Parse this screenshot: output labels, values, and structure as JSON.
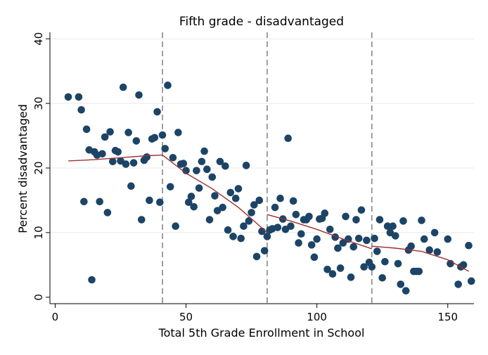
{
  "chart_data": {
    "type": "scatter",
    "title": "Fifth grade - disadvantaged",
    "xlabel": "Total 5th Grade Enrollment in School",
    "ylabel": "Percent disadvantaged",
    "xlim": [
      -2,
      160
    ],
    "ylim": [
      -1,
      41
    ],
    "xticks": [
      0,
      50,
      100,
      150
    ],
    "yticks": [
      0,
      10,
      20,
      30,
      40
    ],
    "grid": true,
    "cutoffs": [
      41,
      81,
      121
    ],
    "points": [
      [
        5,
        31
      ],
      [
        9,
        31
      ],
      [
        10,
        29
      ],
      [
        11,
        14.8
      ],
      [
        12,
        26
      ],
      [
        13,
        22.8
      ],
      [
        14,
        2.7
      ],
      [
        15,
        22.5
      ],
      [
        16,
        22
      ],
      [
        17,
        14.8
      ],
      [
        18,
        22.2
      ],
      [
        19,
        24.8
      ],
      [
        20,
        13.1
      ],
      [
        21,
        25.6
      ],
      [
        22,
        21
      ],
      [
        23,
        22.7
      ],
      [
        24,
        22.5
      ],
      [
        25,
        21.1
      ],
      [
        26,
        32.5
      ],
      [
        27,
        20.6
      ],
      [
        28,
        25.5
      ],
      [
        29,
        17.2
      ],
      [
        30,
        20.8
      ],
      [
        31,
        24.2
      ],
      [
        32,
        31.3
      ],
      [
        33,
        12
      ],
      [
        34,
        21.2
      ],
      [
        35,
        21.7
      ],
      [
        36,
        15
      ],
      [
        37,
        24.5
      ],
      [
        38,
        24.7
      ],
      [
        39,
        28.7
      ],
      [
        40,
        14.7
      ],
      [
        41,
        25.1
      ],
      [
        42,
        23
      ],
      [
        43,
        32.8
      ],
      [
        44,
        17.1
      ],
      [
        45,
        21.6
      ],
      [
        46,
        11
      ],
      [
        47,
        25.5
      ],
      [
        48,
        20.6
      ],
      [
        49,
        20.7
      ],
      [
        50,
        19.6
      ],
      [
        51,
        14.7
      ],
      [
        52,
        15.6
      ],
      [
        53,
        14
      ],
      [
        54,
        19.6
      ],
      [
        55,
        16.9
      ],
      [
        56,
        21
      ],
      [
        57,
        22.6
      ],
      [
        58,
        19.8
      ],
      [
        59,
        12
      ],
      [
        60,
        18.6
      ],
      [
        61,
        15.7
      ],
      [
        62,
        13.4
      ],
      [
        63,
        21
      ],
      [
        64,
        13.9
      ],
      [
        65,
        20.3
      ],
      [
        66,
        10.4
      ],
      [
        67,
        16.2
      ],
      [
        68,
        9.4
      ],
      [
        69,
        15.3
      ],
      [
        70,
        16.8
      ],
      [
        71,
        9.1
      ],
      [
        72,
        11
      ],
      [
        73,
        20.4
      ],
      [
        74,
        11.8
      ],
      [
        75,
        13.1
      ],
      [
        76,
        14.3
      ],
      [
        77,
        6.3
      ],
      [
        78,
        15
      ],
      [
        79,
        10.2
      ],
      [
        80,
        7.2
      ],
      [
        81,
        9.4
      ],
      [
        82,
        10.4
      ],
      [
        83,
        10.6
      ],
      [
        84,
        13.9
      ],
      [
        85,
        10.8
      ],
      [
        86,
        15.3
      ],
      [
        87,
        12.1
      ],
      [
        88,
        10.5
      ],
      [
        89,
        24.6
      ],
      [
        90,
        11
      ],
      [
        91,
        14.9
      ],
      [
        92,
        12.8
      ],
      [
        93,
        8.4
      ],
      [
        94,
        9.8
      ],
      [
        95,
        12
      ],
      [
        96,
        12
      ],
      [
        97,
        12.5
      ],
      [
        98,
        8.1
      ],
      [
        99,
        6.2
      ],
      [
        100,
        9
      ],
      [
        101,
        12.1
      ],
      [
        102,
        12.2
      ],
      [
        103,
        13
      ],
      [
        104,
        4.3
      ],
      [
        105,
        10.5
      ],
      [
        106,
        3.6
      ],
      [
        107,
        9.3
      ],
      [
        108,
        7.6
      ],
      [
        109,
        4.5
      ],
      [
        110,
        8.4
      ],
      [
        111,
        12.5
      ],
      [
        112,
        9
      ],
      [
        113,
        3.1
      ],
      [
        114,
        7.8
      ],
      [
        115,
        12
      ],
      [
        116,
        9.1
      ],
      [
        117,
        13.5
      ],
      [
        118,
        4.7
      ],
      [
        119,
        8.8
      ],
      [
        120,
        5.4
      ],
      [
        121,
        4.7
      ],
      [
        122,
        9.1
      ],
      [
        123,
        7.1
      ],
      [
        124,
        12
      ],
      [
        125,
        3
      ],
      [
        126,
        5.5
      ],
      [
        127,
        11
      ],
      [
        128,
        10
      ],
      [
        129,
        11
      ],
      [
        130,
        9.5
      ],
      [
        131,
        5.2
      ],
      [
        132,
        2
      ],
      [
        133,
        11.8
      ],
      [
        134,
        1
      ],
      [
        135,
        7.3
      ],
      [
        136,
        7.9
      ],
      [
        137,
        4
      ],
      [
        138,
        4
      ],
      [
        139,
        4
      ],
      [
        140,
        11.9
      ],
      [
        141,
        9
      ],
      [
        143,
        7.3
      ],
      [
        145,
        10
      ],
      [
        146,
        7
      ],
      [
        150,
        9
      ],
      [
        151,
        5.2
      ],
      [
        154,
        2
      ],
      [
        155,
        4.7
      ],
      [
        156,
        5
      ],
      [
        158,
        8
      ],
      [
        159,
        2.5
      ]
    ],
    "fit_segments": [
      [
        [
          5,
          21.1
        ],
        [
          15,
          21.3
        ],
        [
          25,
          21.6
        ],
        [
          35,
          21.9
        ],
        [
          41,
          22
        ]
      ],
      [
        [
          41,
          22
        ],
        [
          50,
          19.2
        ],
        [
          60,
          16.8
        ],
        [
          70,
          13.9
        ],
        [
          76,
          11.8
        ],
        [
          81,
          10
        ]
      ],
      [
        [
          81,
          12.8
        ],
        [
          90,
          11.8
        ],
        [
          100,
          10.5
        ],
        [
          110,
          9
        ],
        [
          121,
          7.5
        ]
      ],
      [
        [
          121,
          7.9
        ],
        [
          130,
          7.6
        ],
        [
          140,
          7.1
        ],
        [
          150,
          5.8
        ],
        [
          158,
          4
        ]
      ]
    ]
  }
}
